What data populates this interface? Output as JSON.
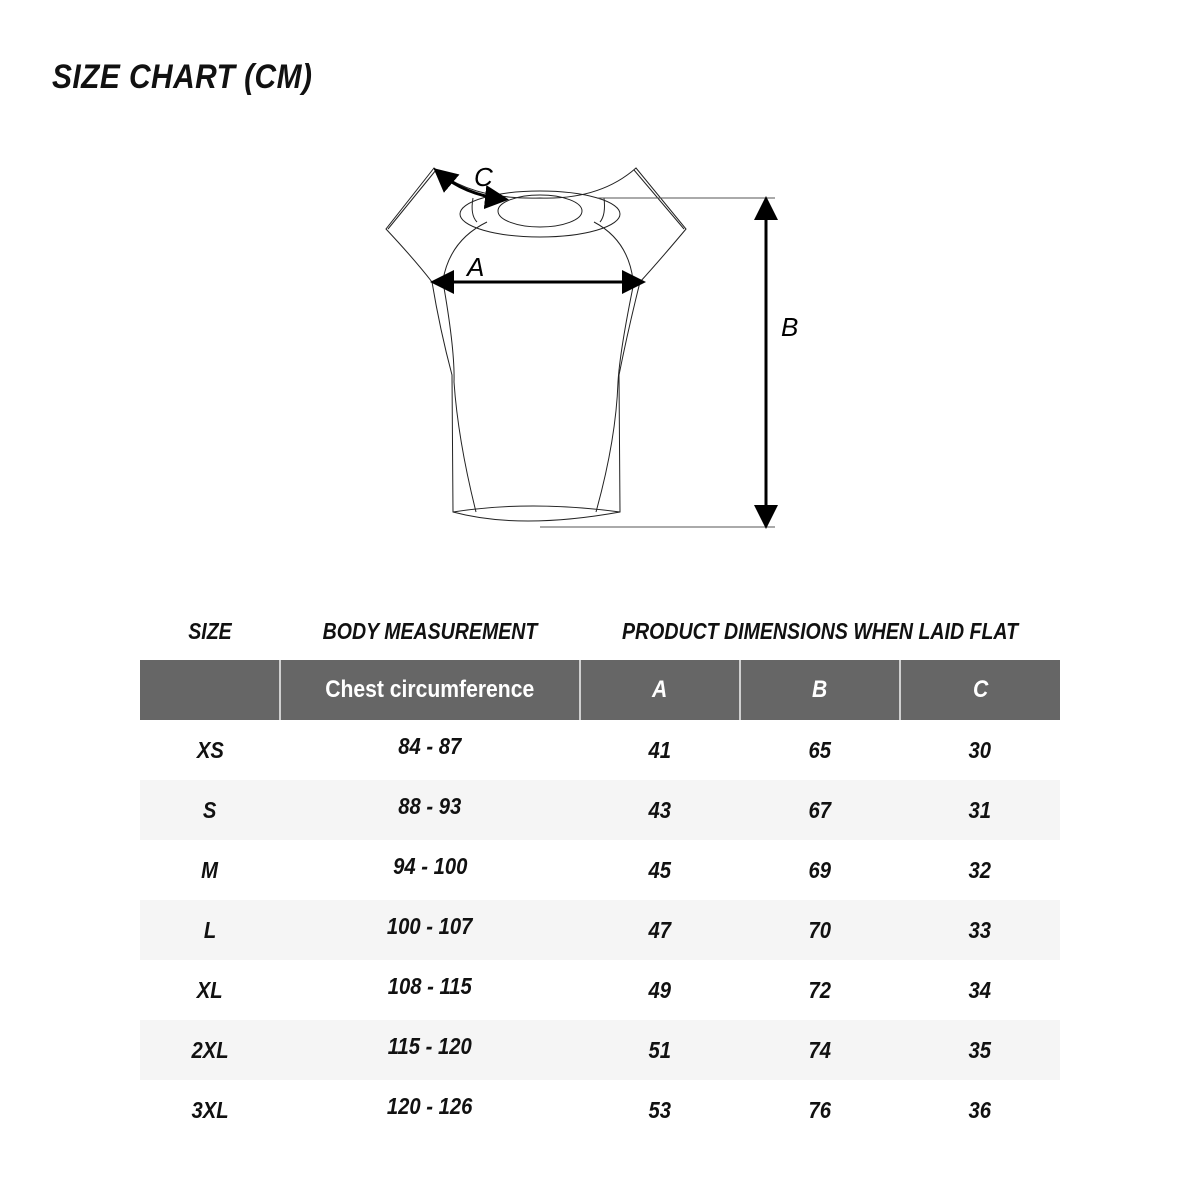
{
  "title": "SIZE CHART (CM)",
  "diagram": {
    "labels": {
      "a": "A",
      "b": "B",
      "c": "C"
    }
  },
  "table": {
    "group_headers": {
      "size": "SIZE",
      "body": "BODY MEASUREMENT",
      "product": "PRODUCT DIMENSIONS WHEN LAID FLAT"
    },
    "columns": [
      "",
      "Chest circumference",
      "A",
      "B",
      "C"
    ],
    "header_color": "#666666",
    "rows": [
      [
        "XS",
        "84 - 87",
        "41",
        "65",
        "30"
      ],
      [
        "S",
        "88 - 93",
        "43",
        "67",
        "31"
      ],
      [
        "M",
        "94 - 100",
        "45",
        "69",
        "32"
      ],
      [
        "L",
        "100 - 107",
        "47",
        "70",
        "33"
      ],
      [
        "XL",
        "108 - 115",
        "49",
        "72",
        "34"
      ],
      [
        "2XL",
        "115 - 120",
        "51",
        "74",
        "35"
      ],
      [
        "3XL",
        "120 - 126",
        "53",
        "76",
        "36"
      ]
    ]
  }
}
